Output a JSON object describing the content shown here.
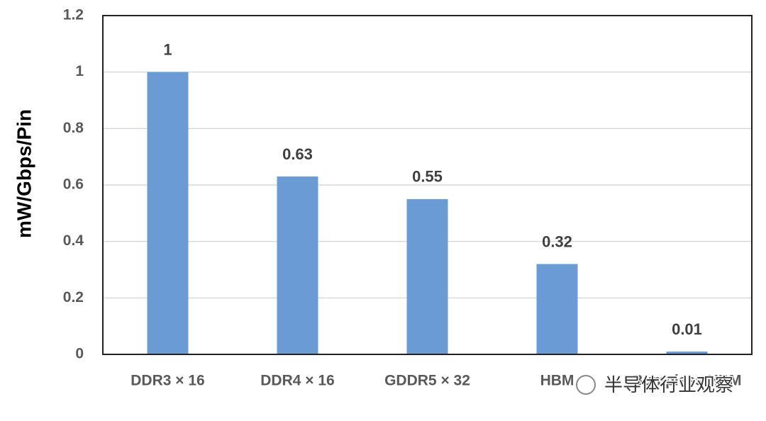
{
  "chart_data": {
    "type": "bar",
    "y_label": "mW/Gbps/Pin",
    "categories": [
      "DDR3 × 16",
      "DDR4 × 16",
      "GDDR5 × 32",
      "HBM",
      "Bumpless HBM"
    ],
    "values": [
      1,
      0.63,
      0.55,
      0.32,
      0.01
    ],
    "color": "#6a9bd4",
    "ylim": [
      0,
      1.2
    ],
    "yticks": [
      0,
      0.2,
      0.4,
      0.6,
      0.8,
      1,
      1.2
    ],
    "grid": true
  },
  "watermark": "半导体行业观察"
}
